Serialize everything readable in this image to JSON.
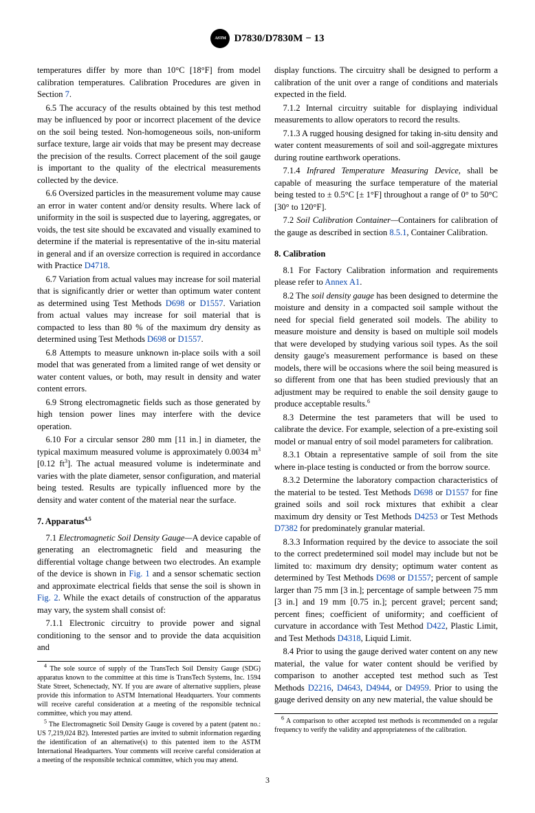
{
  "designation": "D7830/D7830M − 13",
  "pagenum": "3",
  "left": {
    "p1_a": "temperatures differ by more than 10°C [18°F] from model calibration temperatures. Calibration Procedures are given in Section ",
    "p1_link": "7",
    "p1_b": ".",
    "p2": "6.5 The accuracy of the results obtained by this test method may be influenced by poor or incorrect placement of the device on the soil being tested. Non-homogeneous soils, non-uniform surface texture, large air voids that may be present may decrease the precision of the results. Correct placement of the soil gauge is important to the quality of the electrical measurements collected by the device.",
    "p3_a": "6.6 Oversized particles in the measurement volume may cause an error in water content and/or density results. Where lack of uniformity in the soil is suspected due to layering, aggregates, or voids, the test site should be excavated and visually examined to determine if the material is representative of the in-situ material in general and if an oversize correction is required in accordance with Practice ",
    "p3_link": "D4718",
    "p3_b": ".",
    "p4_a": "6.7 Variation from actual values may increase for soil material that is significantly drier or wetter than optimum water content as determined using Test Methods ",
    "p4_l1": "D698",
    "p4_mid": " or ",
    "p4_l2": "D1557",
    "p4_b": ". Variation from actual values may increase for soil material that is compacted to less than 80 % of the maximum dry density as determined using Test Methods ",
    "p4_l3": "D698",
    "p4_mid2": " or ",
    "p4_l4": "D1557",
    "p4_c": ".",
    "p5": "6.8 Attempts to measure unknown in-place soils with a soil model that was generated from a limited range of wet density or water content values, or both, may result in density and water content errors.",
    "p6": "6.9 Strong electromagnetic fields such as those generated by high tension power lines may interfere with the device operation.",
    "p7_a": "6.10 For a circular sensor 280 mm [11 in.] in diameter, the typical maximum measured volume is approximately 0.0034 m",
    "p7_s1": "3",
    "p7_b": " [0.12 ft",
    "p7_s2": "3",
    "p7_c": "]. The actual measured volume is indeterminate and varies with the plate diameter, sensor configuration, and material being tested. Results are typically influenced more by the density and water content of the material near the surface.",
    "sec7": "7. Apparatus",
    "sec7_sup": "4,5",
    "p8_a": "7.1 ",
    "p8_it": "Electromagnetic Soil Density Gauge—",
    "p8_b": "A device capable of generating an electromagnetic field and measuring the differential voltage change between two electrodes. An example of the device is shown in ",
    "p8_l1": "Fig. 1",
    "p8_c": " and a sensor schematic section and approximate electrical fields that sense the soil is shown in ",
    "p8_l2": "Fig. 2",
    "p8_d": ". While the exact details of construction of the apparatus may vary, the system shall consist of:",
    "p9": "7.1.1 Electronic circuitry to provide power and signal conditioning to the sensor and to provide the data acquisition and",
    "fn4_sup": "4",
    "fn4": " The sole source of supply of the TransTech Soil Density Gauge (SDG) apparatus known to the committee at this time is TransTech Systems, Inc. 1594 State Street, Schenectady, NY. If you are aware of alternative suppliers, please provide this information to ASTM International Headquarters. Your comments will receive careful consideration at a meeting of the responsible technical committee, which you may attend.",
    "fn5_sup": "5",
    "fn5": " The Electromagnetic Soil Density Gauge is covered by a patent (patent no.: US 7,219,024 B2). Interested parties are invited to submit information regarding the identification of an alternative(s) to this patented item to the ASTM International Headquarters. Your comments will receive careful consideration at a meeting of the responsible technical committee, which you may attend."
  },
  "right": {
    "p1": "display functions. The circuitry shall be designed to perform a calibration of the unit over a range of conditions and materials expected in the field.",
    "p2": "7.1.2 Internal circuitry suitable for displaying individual measurements to allow operators to record the results.",
    "p3": "7.1.3 A rugged housing designed for taking in-situ density and water content measurements of soil and soil-aggregate mixtures during routine earthwork operations.",
    "p4_a": "7.1.4 ",
    "p4_it": "Infrared Temperature Measuring Device,",
    "p4_b": " shall be capable of measuring the surface temperature of the material being tested to ± 0.5°C [± 1°F] throughout a range of 0° to 50°C [30° to 120°F].",
    "p5_a": "7.2 ",
    "p5_it": "Soil Calibration Container—",
    "p5_b": "Containers for calibration of the gauge as described in section ",
    "p5_l": "8.5.1",
    "p5_c": ", Container Calibration.",
    "sec8": "8. Calibration",
    "p6_a": "8.1 For Factory Calibration information and requirements please refer to ",
    "p6_l": "Annex A1",
    "p6_b": ".",
    "p7_a": "8.2 The ",
    "p7_it": "soil density gauge",
    "p7_b": " has been designed to determine the moisture and density in a compacted soil sample without the need for special field generated soil models. The ability to measure moisture and density is based on multiple soil models that were developed by studying various soil types. As the soil density gauge's measurement performance is based on these models, there will be occasions where the soil being measured is so different from one that has been studied previously that an adjustment may be required to enable the soil density gauge to produce acceptable results.",
    "p7_sup": "6",
    "p8": "8.3 Determine the test parameters that will be used to calibrate the device. For example, selection of a pre-existing soil model or manual entry of soil model parameters for calibration.",
    "p9": "8.3.1 Obtain a representative sample of soil from the site where in-place testing is conducted or from the borrow source.",
    "p10_a": "8.3.2 Determine the laboratory compaction characteristics of the material to be tested. Test Methods ",
    "p10_l1": "D698",
    "p10_b": " or ",
    "p10_l2": "D1557",
    "p10_c": " for fine grained soils and soil rock mixtures that exhibit a clear maximum dry density or Test Methods ",
    "p10_l3": "D4253",
    "p10_d": " or Test Methods ",
    "p10_l4": "D7382",
    "p10_e": " for predominately granular material.",
    "p11_a": "8.3.3 Information required by the device to associate the soil to the correct predetermined soil model may include but not be limited to: maximum dry density; optimum water content as determined by Test Methods ",
    "p11_l1": "D698",
    "p11_b": " or ",
    "p11_l2": "D1557",
    "p11_c": "; percent of sample larger than 75 mm [3 in.]; percentage of sample between 75 mm [3 in.] and 19 mm [0.75 in.]; percent gravel; percent sand; percent fines; coefficient of uniformity; and coefficient of curvature in accordance with Test Method ",
    "p11_l3": "D422",
    "p11_d": ", Plastic Limit, and Test Methods ",
    "p11_l4": "D4318",
    "p11_e": ", Liquid Limit.",
    "p12_a": "8.4 Prior to using the gauge derived water content on any new material, the value for water content should be verified by comparison to another accepted test method such as Test Methods ",
    "p12_l1": "D2216",
    "p12_b": ", ",
    "p12_l2": "D4643",
    "p12_c": ", ",
    "p12_l3": "D4944",
    "p12_d": ", or ",
    "p12_l4": "D4959",
    "p12_e": ". Prior to using the gauge derived density on any new material, the value should be",
    "fn6_sup": "6",
    "fn6": " A comparison to other accepted test methods is recommended on a regular frequency to verify the validity and appropriateness of the calibration."
  }
}
